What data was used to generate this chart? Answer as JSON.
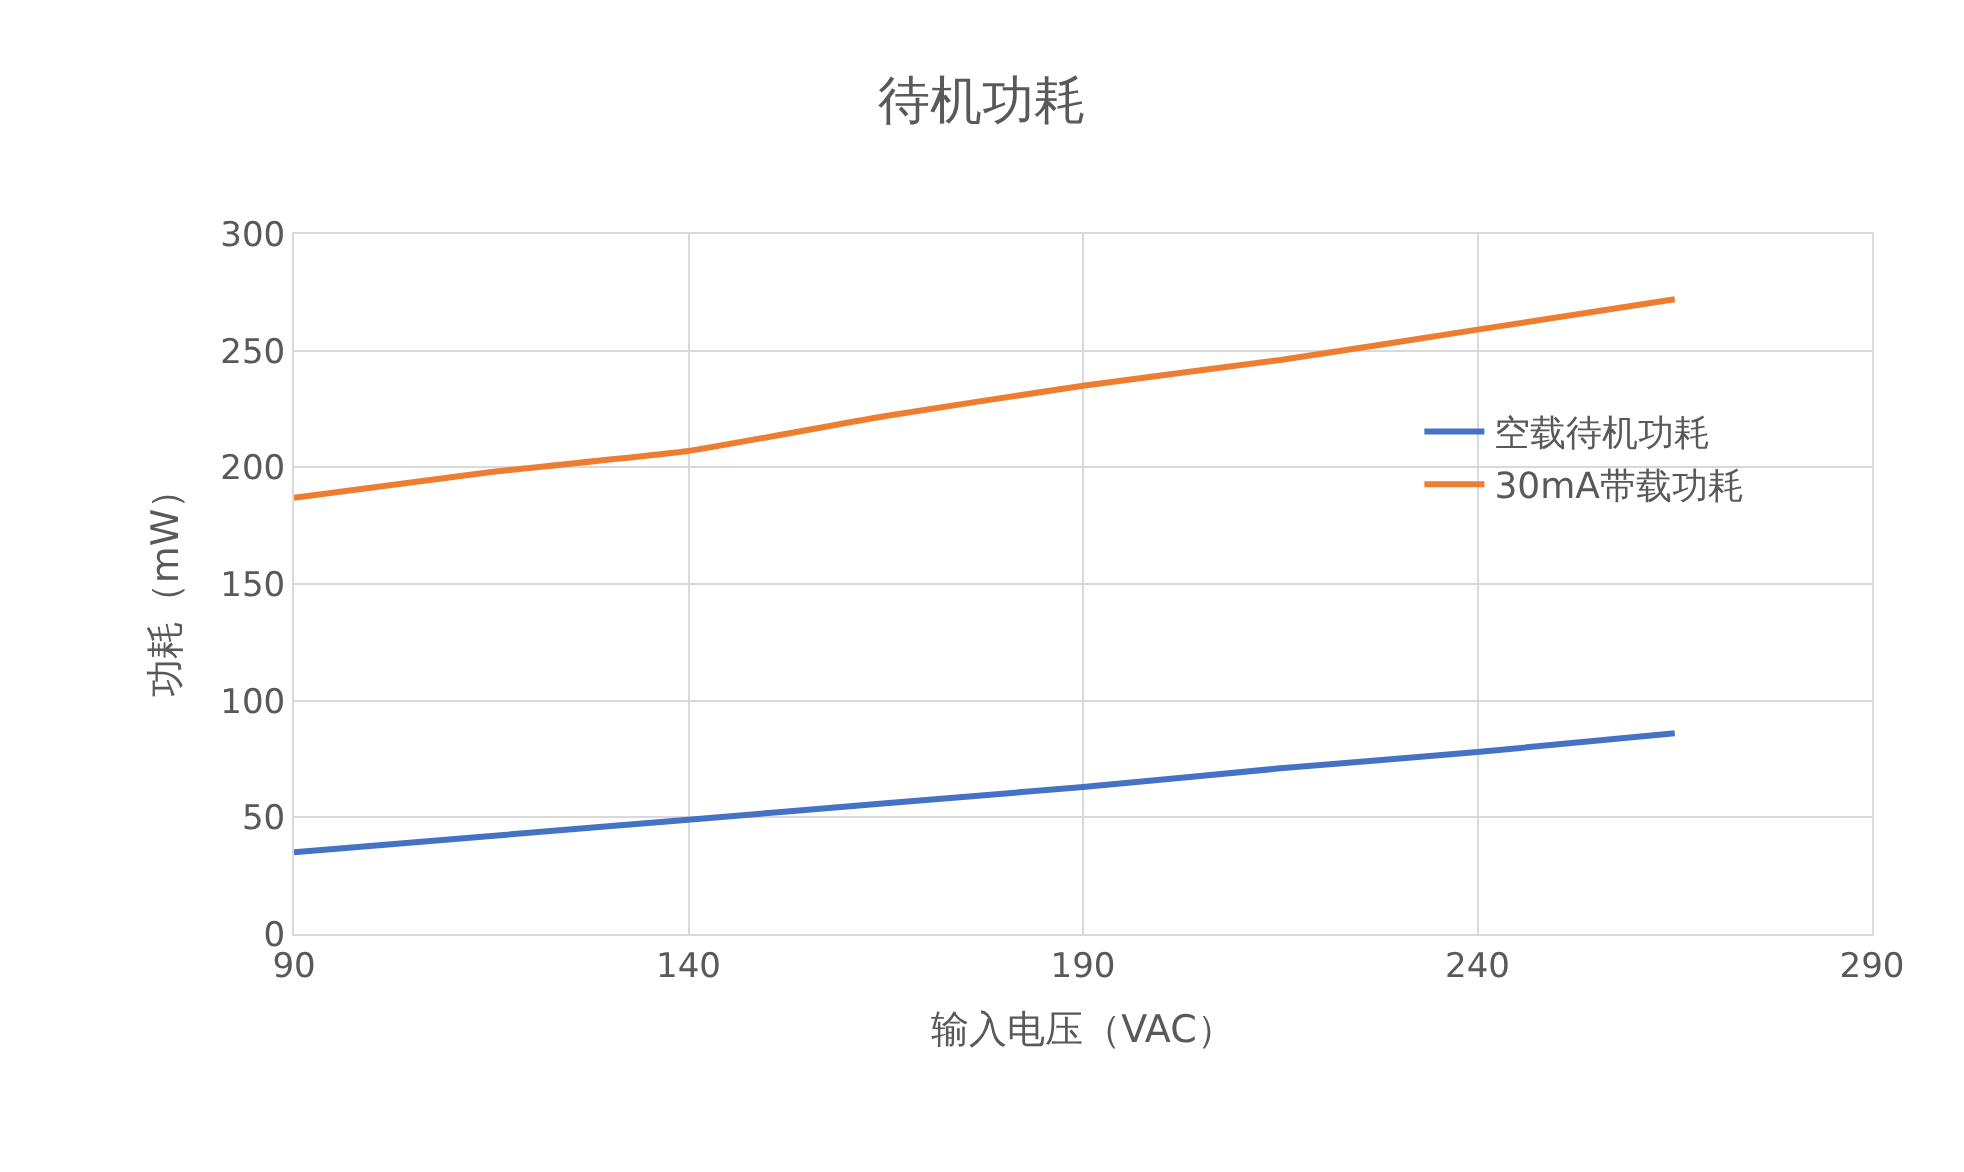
{
  "chart_data": {
    "type": "line",
    "title": "待机功耗",
    "xlabel": "输入电压（VAC）",
    "ylabel": "功耗（mW）",
    "x": [
      90,
      115,
      140,
      165,
      190,
      215,
      240,
      265
    ],
    "series": [
      {
        "name": "空载待机功耗",
        "color": "#4472c4",
        "values": [
          35,
          42,
          49,
          56,
          63,
          71,
          78,
          86
        ]
      },
      {
        "name": "30mA带载功耗",
        "color": "#ed7d31",
        "values": [
          187,
          198,
          207,
          222,
          235,
          246,
          259,
          272
        ]
      }
    ],
    "xlim": [
      90,
      290
    ],
    "xticks": [
      90,
      140,
      190,
      240,
      290
    ],
    "ylim": [
      0,
      300
    ],
    "yticks": [
      0,
      50,
      100,
      150,
      200,
      250,
      300
    ],
    "grid": true,
    "legend": "right",
    "marker": "none",
    "line_style": "solid"
  }
}
